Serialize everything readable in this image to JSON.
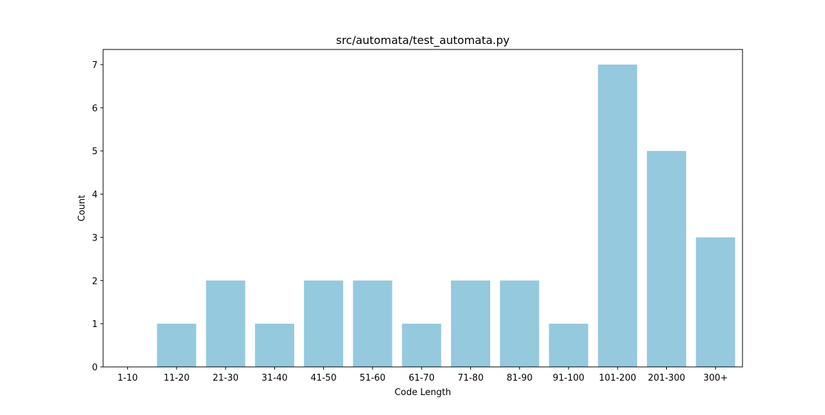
{
  "chart_data": {
    "type": "bar",
    "title": "src/automata/test_automata.py",
    "xlabel": "Code Length",
    "ylabel": "Count",
    "categories": [
      "1-10",
      "11-20",
      "21-30",
      "31-40",
      "41-50",
      "51-60",
      "61-70",
      "71-80",
      "81-90",
      "91-100",
      "101-200",
      "201-300",
      "300+"
    ],
    "values": [
      0,
      1,
      2,
      1,
      2,
      2,
      1,
      2,
      2,
      1,
      7,
      5,
      3
    ],
    "yticks": [
      0,
      1,
      2,
      3,
      4,
      5,
      6,
      7
    ],
    "ylim": [
      0,
      7.35
    ],
    "grid": false,
    "legend": "none",
    "bar_color": "#95c9de"
  }
}
